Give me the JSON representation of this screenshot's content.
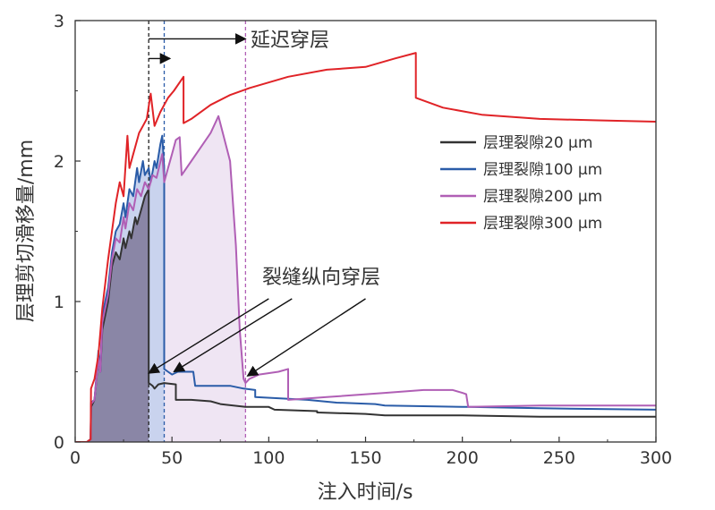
{
  "chart_data": {
    "type": "line",
    "title": "",
    "xlabel": "注入时间/s",
    "ylabel": "层理剪切滑移量/mm",
    "xlim": [
      0,
      300
    ],
    "ylim": [
      0,
      3
    ],
    "x_ticks": [
      0,
      50,
      100,
      150,
      200,
      250,
      300
    ],
    "y_ticks": [
      0,
      1,
      2,
      3
    ],
    "legend_position": "right",
    "colors": {
      "black": "#333333",
      "blue": "#2a5ca8",
      "purple": "#b05fb5",
      "red": "#e02327",
      "shade_black": "#8a86a6",
      "shade_blue": "#c9d3ee",
      "shade_purple": "#efe5f3"
    },
    "series": [
      {
        "name": "层理裂隙20 μm",
        "color": "#333333",
        "points": [
          [
            0,
            0
          ],
          [
            6,
            0
          ],
          [
            8,
            0.02
          ],
          [
            8.2,
            0.25
          ],
          [
            10,
            0.3
          ],
          [
            12,
            0.6
          ],
          [
            13,
            0.5
          ],
          [
            14,
            0.8
          ],
          [
            17,
            1.0
          ],
          [
            19,
            1.25
          ],
          [
            21,
            1.35
          ],
          [
            23,
            1.3
          ],
          [
            25,
            1.45
          ],
          [
            26,
            1.38
          ],
          [
            28,
            1.5
          ],
          [
            29,
            1.45
          ],
          [
            31,
            1.6
          ],
          [
            32,
            1.55
          ],
          [
            34,
            1.65
          ],
          [
            36,
            1.75
          ],
          [
            38,
            1.8
          ],
          [
            38,
            0.42
          ],
          [
            40,
            0.4
          ],
          [
            41,
            0.38
          ],
          [
            43,
            0.41
          ],
          [
            46,
            0.42
          ],
          [
            52,
            0.41
          ],
          [
            52,
            0.3
          ],
          [
            60,
            0.3
          ],
          [
            70,
            0.29
          ],
          [
            75,
            0.27
          ],
          [
            88,
            0.25
          ],
          [
            100,
            0.25
          ],
          [
            103,
            0.23
          ],
          [
            125,
            0.22
          ],
          [
            125,
            0.21
          ],
          [
            150,
            0.2
          ],
          [
            160,
            0.19
          ],
          [
            200,
            0.19
          ],
          [
            240,
            0.18
          ],
          [
            300,
            0.18
          ]
        ]
      },
      {
        "name": "层理裂隙100 μm",
        "color": "#2a5ca8",
        "points": [
          [
            0,
            0
          ],
          [
            6,
            0
          ],
          [
            8,
            0.02
          ],
          [
            8.2,
            0.28
          ],
          [
            10,
            0.3
          ],
          [
            12,
            0.65
          ],
          [
            13,
            0.5
          ],
          [
            14,
            0.9
          ],
          [
            17,
            1.1
          ],
          [
            19,
            1.35
          ],
          [
            21,
            1.5
          ],
          [
            23,
            1.55
          ],
          [
            25,
            1.7
          ],
          [
            26,
            1.6
          ],
          [
            28,
            1.8
          ],
          [
            30,
            1.75
          ],
          [
            32,
            1.95
          ],
          [
            33,
            1.85
          ],
          [
            35,
            2.0
          ],
          [
            36,
            1.9
          ],
          [
            38,
            1.95
          ],
          [
            39,
            1.85
          ],
          [
            41,
            2.0
          ],
          [
            42,
            1.95
          ],
          [
            44,
            2.12
          ],
          [
            45,
            2.18
          ],
          [
            46,
            1.95
          ],
          [
            46,
            0.52
          ],
          [
            48,
            0.5
          ],
          [
            50,
            0.48
          ],
          [
            53,
            0.5
          ],
          [
            61,
            0.5
          ],
          [
            62,
            0.4
          ],
          [
            80,
            0.4
          ],
          [
            87,
            0.38
          ],
          [
            93,
            0.37
          ],
          [
            93,
            0.32
          ],
          [
            120,
            0.3
          ],
          [
            135,
            0.28
          ],
          [
            155,
            0.27
          ],
          [
            160,
            0.26
          ],
          [
            200,
            0.25
          ],
          [
            203,
            0.25
          ],
          [
            240,
            0.24
          ],
          [
            300,
            0.23
          ]
        ]
      },
      {
        "name": "层理裂隙200 μm",
        "color": "#b05fb5",
        "points": [
          [
            0,
            0
          ],
          [
            6,
            0
          ],
          [
            8,
            0.02
          ],
          [
            8.2,
            0.27
          ],
          [
            10,
            0.3
          ],
          [
            12,
            0.6
          ],
          [
            13,
            0.5
          ],
          [
            14,
            0.85
          ],
          [
            17,
            1.05
          ],
          [
            19,
            1.3
          ],
          [
            21,
            1.45
          ],
          [
            23,
            1.42
          ],
          [
            25,
            1.6
          ],
          [
            26,
            1.52
          ],
          [
            28,
            1.7
          ],
          [
            30,
            1.65
          ],
          [
            32,
            1.8
          ],
          [
            34,
            1.75
          ],
          [
            36,
            1.85
          ],
          [
            38,
            1.8
          ],
          [
            40,
            1.9
          ],
          [
            42,
            1.88
          ],
          [
            45,
            2.05
          ],
          [
            46,
            1.85
          ],
          [
            48,
            1.95
          ],
          [
            50,
            2.05
          ],
          [
            52,
            2.15
          ],
          [
            54,
            2.17
          ],
          [
            55,
            1.9
          ],
          [
            60,
            2.0
          ],
          [
            65,
            2.1
          ],
          [
            70,
            2.2
          ],
          [
            74,
            2.32
          ],
          [
            80,
            2.0
          ],
          [
            83,
            1.4
          ],
          [
            85,
            0.8
          ],
          [
            87,
            0.45
          ],
          [
            88,
            0.42
          ],
          [
            90,
            0.45
          ],
          [
            95,
            0.48
          ],
          [
            105,
            0.5
          ],
          [
            110,
            0.52
          ],
          [
            110,
            0.3
          ],
          [
            130,
            0.32
          ],
          [
            160,
            0.35
          ],
          [
            180,
            0.37
          ],
          [
            195,
            0.37
          ],
          [
            200,
            0.35
          ],
          [
            202,
            0.34
          ],
          [
            203,
            0.25
          ],
          [
            240,
            0.26
          ],
          [
            300,
            0.26
          ]
        ]
      },
      {
        "name": "层理裂隙300 μm",
        "color": "#e02327",
        "points": [
          [
            0,
            0
          ],
          [
            6,
            0
          ],
          [
            8,
            0.02
          ],
          [
            8.2,
            0.38
          ],
          [
            10,
            0.45
          ],
          [
            12,
            0.62
          ],
          [
            14,
            0.95
          ],
          [
            17,
            1.3
          ],
          [
            19,
            1.5
          ],
          [
            21,
            1.7
          ],
          [
            23,
            1.85
          ],
          [
            25,
            1.75
          ],
          [
            27,
            2.18
          ],
          [
            28,
            1.95
          ],
          [
            30,
            2.05
          ],
          [
            33,
            2.2
          ],
          [
            35,
            2.25
          ],
          [
            37,
            2.3
          ],
          [
            39,
            2.48
          ],
          [
            41,
            2.25
          ],
          [
            44,
            2.35
          ],
          [
            48,
            2.45
          ],
          [
            51,
            2.5
          ],
          [
            56,
            2.6
          ],
          [
            56,
            2.27
          ],
          [
            60,
            2.3
          ],
          [
            70,
            2.4
          ],
          [
            80,
            2.47
          ],
          [
            90,
            2.52
          ],
          [
            110,
            2.6
          ],
          [
            130,
            2.65
          ],
          [
            150,
            2.67
          ],
          [
            165,
            2.73
          ],
          [
            176,
            2.77
          ],
          [
            176,
            2.45
          ],
          [
            190,
            2.38
          ],
          [
            210,
            2.33
          ],
          [
            240,
            2.3
          ],
          [
            270,
            2.29
          ],
          [
            300,
            2.28
          ]
        ]
      }
    ],
    "shaded_regions": [
      {
        "series_index": 2,
        "x_start": 0,
        "x_end": 88,
        "color_key": "shade_purple"
      },
      {
        "series_index": 1,
        "x_start": 0,
        "x_end": 46,
        "color_key": "shade_blue"
      },
      {
        "series_index": 0,
        "x_start": 0,
        "x_end": 38,
        "color_key": "shade_black"
      }
    ],
    "vlines": [
      {
        "x": 38,
        "color": "#222222"
      },
      {
        "x": 46,
        "color": "#2a5ca8"
      },
      {
        "x": 88,
        "color": "#b05fb5"
      }
    ],
    "annotations": {
      "delay_text": "延迟穿层",
      "crack_text": "裂缝纵向穿层",
      "delay_arrow_long": {
        "from": [
          38,
          2.87
        ],
        "to": [
          88,
          2.87
        ]
      },
      "delay_arrow_short": {
        "from": [
          38,
          2.73
        ],
        "to": [
          49,
          2.73
        ]
      },
      "crack_arrows": [
        {
          "from": [
            100,
            1.02
          ],
          "to": [
            38,
            0.49
          ]
        },
        {
          "from": [
            112,
            1.02
          ],
          "to": [
            51,
            0.5
          ]
        },
        {
          "from": [
            150,
            1.02
          ],
          "to": [
            89,
            0.47
          ]
        }
      ]
    }
  }
}
